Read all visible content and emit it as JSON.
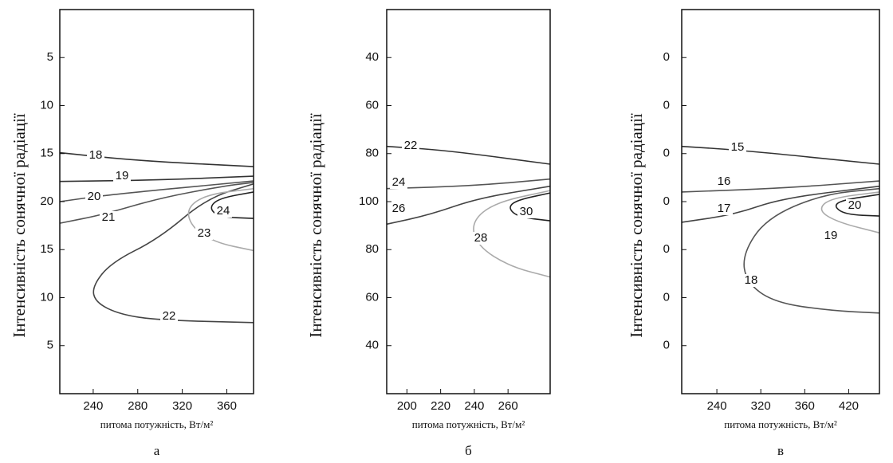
{
  "chart_data": [
    {
      "type": "contour",
      "ylabel": "Інтенсивність сонячної радіації",
      "xlabel": "питома потужність, Вт/м²",
      "panel_label": "а",
      "xlim": [
        210,
        384
      ],
      "xticks": [
        240,
        280,
        320,
        360
      ],
      "ylim": [
        0,
        8
      ],
      "yticks": [
        {
          "value": 7,
          "label": "5"
        },
        {
          "value": 6,
          "label": "10"
        },
        {
          "value": 5,
          "label": "15"
        },
        {
          "value": 4,
          "label": "20"
        },
        {
          "value": 3,
          "label": "15"
        },
        {
          "value": 2,
          "label": "10"
        },
        {
          "value": 1,
          "label": "5"
        }
      ],
      "contours": [
        {
          "level": 18,
          "color": "#333333",
          "x": [
            210,
            280,
            384
          ],
          "y": [
            5.02,
            4.85,
            4.73
          ]
        },
        {
          "level": 19,
          "color": "#333333",
          "x": [
            210,
            300,
            384
          ],
          "y": [
            4.42,
            4.45,
            4.53
          ]
        },
        {
          "level": 20,
          "color": "#555555",
          "x": [
            210,
            256,
            384
          ],
          "y": [
            4.0,
            4.15,
            4.43
          ]
        },
        {
          "level": 21,
          "color": "#555555",
          "x": [
            210,
            249,
            299,
            356,
            384
          ],
          "y": [
            3.55,
            3.73,
            4.07,
            4.32,
            4.4
          ]
        },
        {
          "level": 22,
          "color": "#444444",
          "x": [
            384,
            342,
            299,
            256,
            239,
            242,
            264,
            299,
            384
          ],
          "y": [
            4.37,
            4.07,
            3.23,
            2.73,
            2.23,
            1.9,
            1.65,
            1.53,
            1.48
          ]
        },
        {
          "level": 23,
          "color": "#aaaaaa",
          "x": [
            384,
            342,
            324,
            328,
            349,
            384
          ],
          "y": [
            4.27,
            4.15,
            3.87,
            3.48,
            3.15,
            2.98
          ]
        },
        {
          "level": 24,
          "color": "#222222",
          "x": [
            384,
            353,
            344,
            353,
            384
          ],
          "y": [
            4.2,
            4.07,
            3.87,
            3.68,
            3.65
          ]
        }
      ]
    },
    {
      "type": "contour",
      "ylabel": "Інтенсивність сонячної радіації",
      "xlabel": "питома потужність, Вт/м²",
      "panel_label": "б",
      "xlim": [
        188,
        285
      ],
      "xticks": [
        200,
        220,
        240,
        260
      ],
      "ylim": [
        0,
        8
      ],
      "yticks": [
        {
          "value": 7,
          "label": "40"
        },
        {
          "value": 6,
          "label": "60"
        },
        {
          "value": 5,
          "label": "80"
        },
        {
          "value": 4,
          "label": "100"
        },
        {
          "value": 3,
          "label": "80"
        },
        {
          "value": 2,
          "label": "60"
        },
        {
          "value": 1,
          "label": "40"
        }
      ],
      "contours": [
        {
          "level": 22,
          "color": "#333333",
          "x": [
            188,
            223,
            285
          ],
          "y": [
            5.15,
            5.07,
            4.78
          ]
        },
        {
          "level": 24,
          "color": "#555555",
          "x": [
            188,
            240,
            285
          ],
          "y": [
            4.27,
            4.33,
            4.47
          ]
        },
        {
          "level": 26,
          "color": "#444444",
          "x": [
            188,
            214,
            242,
            285
          ],
          "y": [
            3.53,
            3.73,
            4.07,
            4.32
          ]
        },
        {
          "level": 28,
          "color": "#aaaaaa",
          "x": [
            285,
            252,
            238,
            242,
            261,
            285
          ],
          "y": [
            4.23,
            3.98,
            3.57,
            3.07,
            2.65,
            2.43
          ]
        },
        {
          "level": 30,
          "color": "#222222",
          "x": [
            285,
            265,
            260,
            266,
            285
          ],
          "y": [
            4.18,
            4.03,
            3.87,
            3.68,
            3.6
          ]
        }
      ]
    },
    {
      "type": "contour",
      "ylabel": "Інтенсивність сонячної радіації",
      "xlabel": "питома потужність, Вт/м²",
      "panel_label": "в",
      "xlim": [
        0.2,
        4.7
      ],
      "xticks": [
        {
          "value": 1,
          "label": "240"
        },
        {
          "value": 2,
          "label": "320"
        },
        {
          "value": 3,
          "label": "360"
        },
        {
          "value": 4,
          "label": "420"
        }
      ],
      "ylim": [
        0,
        8
      ],
      "yticks": [
        {
          "value": 7,
          "label": "0"
        },
        {
          "value": 6,
          "label": "0"
        },
        {
          "value": 5,
          "label": "0"
        },
        {
          "value": 4,
          "label": "0"
        },
        {
          "value": 3,
          "label": "0"
        },
        {
          "value": 2,
          "label": "0"
        },
        {
          "value": 1,
          "label": "0"
        }
      ],
      "contours": [
        {
          "level": 15,
          "color": "#333333",
          "x": [
            0.2,
            1.58,
            4.7
          ],
          "y": [
            5.15,
            5.07,
            4.78
          ]
        },
        {
          "level": 16,
          "color": "#555555",
          "x": [
            0.2,
            2.5,
            4.7
          ],
          "y": [
            4.2,
            4.28,
            4.43
          ]
        },
        {
          "level": 17,
          "color": "#444444",
          "x": [
            0.2,
            1.4,
            2.48,
            4.7
          ],
          "y": [
            3.57,
            3.73,
            4.07,
            4.32
          ]
        },
        {
          "level": 18,
          "color": "#555555",
          "x": [
            4.7,
            3.39,
            2.12,
            1.58,
            1.67,
            2.3,
            3.57,
            4.7
          ],
          "y": [
            4.27,
            4.15,
            3.65,
            2.9,
            2.32,
            1.9,
            1.73,
            1.68
          ]
        },
        {
          "level": 19,
          "color": "#aaaaaa",
          "x": [
            4.7,
            3.57,
            3.3,
            3.75,
            4.7
          ],
          "y": [
            4.2,
            4.07,
            3.82,
            3.57,
            3.35
          ]
        },
        {
          "level": 20,
          "color": "#222222",
          "x": [
            4.7,
            3.84,
            3.66,
            3.93,
            4.7
          ],
          "y": [
            4.15,
            4.03,
            3.9,
            3.73,
            3.7
          ]
        }
      ]
    }
  ]
}
